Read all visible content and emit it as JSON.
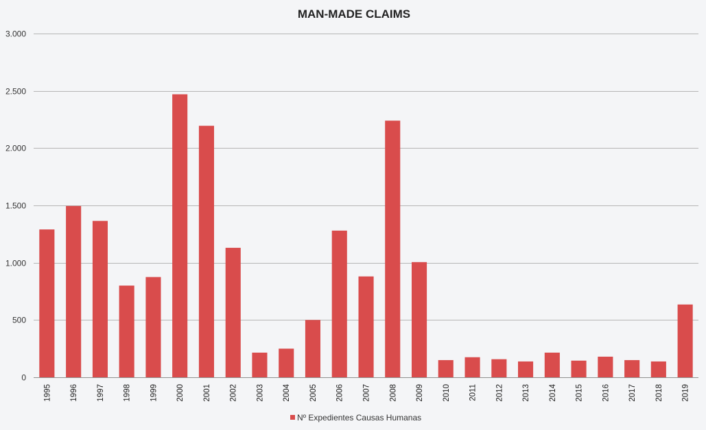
{
  "chart_data": {
    "type": "bar",
    "title": "MAN-MADE CLAIMS",
    "xlabel": "",
    "ylabel": "",
    "ylim": [
      0,
      3000
    ],
    "yticks": [
      0,
      500,
      1000,
      1500,
      2000,
      2500,
      3000
    ],
    "ytick_labels": [
      "0",
      "500",
      "1.000",
      "1.500",
      "2.000",
      "2.500",
      "3.000"
    ],
    "grid": true,
    "legend_position": "bottom",
    "categories": [
      "1995",
      "1996",
      "1997",
      "1998",
      "1999",
      "2000",
      "2001",
      "2002",
      "2003",
      "2004",
      "2005",
      "2006",
      "2007",
      "2008",
      "2009",
      "2010",
      "2011",
      "2012",
      "2013",
      "2014",
      "2015",
      "2016",
      "2017",
      "2018",
      "2019"
    ],
    "series": [
      {
        "name": "Nº Expedientes Causas Humanas",
        "color": "#d94c4c",
        "values": [
          1290,
          1495,
          1365,
          800,
          875,
          2470,
          2195,
          1130,
          215,
          250,
          500,
          1280,
          880,
          2240,
          1005,
          150,
          175,
          158,
          138,
          215,
          145,
          180,
          150,
          138,
          635
        ]
      }
    ]
  }
}
